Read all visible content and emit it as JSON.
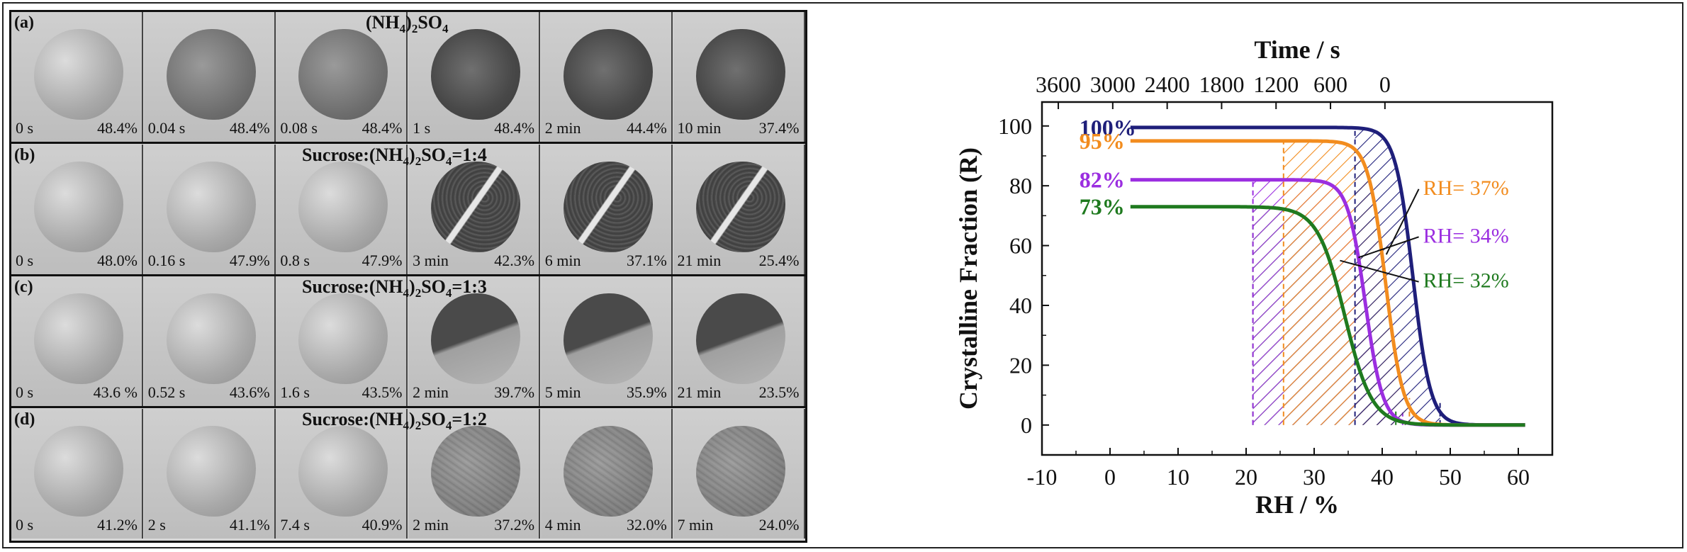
{
  "micrographs": {
    "rows": [
      {
        "label": "(a)",
        "title_pre": "(NH",
        "title_sub1": "4",
        "title_mid": ")",
        "title_sub2": "2",
        "title_post": "SO",
        "title_sub3": "4",
        "cells": [
          {
            "time": "0 s",
            "pct": "48.4%"
          },
          {
            "time": "0.04 s",
            "pct": "48.4%"
          },
          {
            "time": "0.08 s",
            "pct": "48.4%"
          },
          {
            "time": "1 s",
            "pct": "48.4%"
          },
          {
            "time": "2 min",
            "pct": "44.4%"
          },
          {
            "time": "10 min",
            "pct": "37.4%"
          }
        ]
      },
      {
        "label": "(b)",
        "title_pre": "Sucrose:(NH",
        "title_sub1": "4",
        "title_mid": ")",
        "title_sub2": "2",
        "title_post": "SO",
        "title_sub3": "4",
        "title_ratio": "=1:4",
        "cells": [
          {
            "time": "0 s",
            "pct": "48.0%"
          },
          {
            "time": "0.16 s",
            "pct": "47.9%"
          },
          {
            "time": "0.8 s",
            "pct": "47.9%"
          },
          {
            "time": "3 min",
            "pct": "42.3%"
          },
          {
            "time": "6 min",
            "pct": "37.1%"
          },
          {
            "time": "21 min",
            "pct": "25.4%"
          }
        ]
      },
      {
        "label": "(c)",
        "title_pre": "Sucrose:(NH",
        "title_sub1": "4",
        "title_mid": ")",
        "title_sub2": "2",
        "title_post": "SO",
        "title_sub3": "4",
        "title_ratio": "=1:3",
        "cells": [
          {
            "time": "0 s",
            "pct": "43.6 %"
          },
          {
            "time": "0.52 s",
            "pct": "43.6%"
          },
          {
            "time": "1.6 s",
            "pct": "43.5%"
          },
          {
            "time": "2 min",
            "pct": "39.7%"
          },
          {
            "time": "5 min",
            "pct": "35.9%"
          },
          {
            "time": "21 min",
            "pct": "23.5%"
          }
        ]
      },
      {
        "label": "(d)",
        "title_pre": "Sucrose:(NH",
        "title_sub1": "4",
        "title_mid": ")",
        "title_sub2": "2",
        "title_post": "SO",
        "title_sub3": "4",
        "title_ratio": "=1:2",
        "cells": [
          {
            "time": "0 s",
            "pct": "41.2%"
          },
          {
            "time": "2 s",
            "pct": "41.1%"
          },
          {
            "time": "7.4 s",
            "pct": "40.9%"
          },
          {
            "time": "2 min",
            "pct": "37.2%"
          },
          {
            "time": "4 min",
            "pct": "32.0%"
          },
          {
            "time": "7 min",
            "pct": "24.0%"
          }
        ]
      }
    ]
  },
  "chart_data": {
    "type": "line",
    "xlabel": "RH / %",
    "ylabel": "Crystalline Fraction (R)",
    "top_axis_label": "Time / s",
    "xlim": [
      -10,
      65
    ],
    "ylim": [
      -10,
      108
    ],
    "xticks": [
      -10,
      0,
      10,
      20,
      30,
      40,
      50,
      60
    ],
    "yticks": [
      0,
      20,
      40,
      60,
      80,
      100
    ],
    "top_ticks": [
      {
        "label": "3600",
        "rh": -7.6
      },
      {
        "label": "3000",
        "rh": 0.4
      },
      {
        "label": "2400",
        "rh": 8.4
      },
      {
        "label": "1800",
        "rh": 16.4
      },
      {
        "label": "1200",
        "rh": 24.4
      },
      {
        "label": "600",
        "rh": 32.4
      },
      {
        "label": "0",
        "rh": 40.4
      }
    ],
    "series": [
      {
        "name": "100%",
        "color": "#1f1f7a",
        "plateau": 99.5,
        "mid": 44.5,
        "width": 1.3,
        "x_start": 3,
        "x_end": 61,
        "hatch": [
          36,
          48.5
        ],
        "annotation": ""
      },
      {
        "name": "95%",
        "color": "#f28c1e",
        "plateau": 95,
        "mid": 40.5,
        "width": 1.3,
        "x_start": 3,
        "x_end": 61,
        "hatch": [
          25.5,
          44
        ],
        "annotation": "RH= 37%"
      },
      {
        "name": "82%",
        "color": "#9b2ee0",
        "plateau": 82,
        "mid": 37.5,
        "width": 1.3,
        "x_start": 3,
        "x_end": 61,
        "hatch": [
          21,
          43
        ],
        "annotation": "RH= 34%"
      },
      {
        "name": "73%",
        "color": "#1f7a1f",
        "plateau": 73,
        "mid": 34.5,
        "width": 2.0,
        "x_start": 3,
        "x_end": 61,
        "hatch": [
          21,
          42
        ],
        "annotation": "RH= 32%"
      }
    ],
    "grid": false
  }
}
